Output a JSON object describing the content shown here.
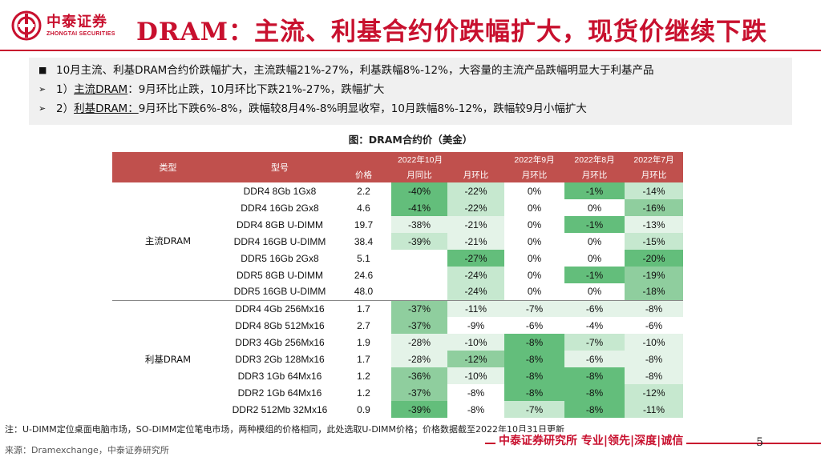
{
  "header": {
    "logo_cn": "中泰证券",
    "logo_en": "ZHONGTAI SECURITIES",
    "title": "DRAM：主流、利基合约价跌幅扩大，现货价继续下跌"
  },
  "summary": {
    "lines": [
      {
        "marker": "■",
        "pre": "",
        "underlined": "",
        "text": "10月主流、利基DRAM合约价跌幅扩大，主流跌幅21%-27%，利基跌幅8%-12%，大容量的主流产品跌幅明显大于利基产品"
      },
      {
        "marker": "➢",
        "pre": "1）",
        "underlined": "主流DRAM",
        "text": "：9月环比止跌，10月环比下跌21%-27%，跌幅扩大"
      },
      {
        "marker": "➢",
        "pre": "2）",
        "underlined": "利基DRAM：",
        "text": "9月环比下跌6%-8%，跌幅较8月4%-8%明显收窄，10月跌幅8%-12%，跌幅较9月小幅扩大"
      }
    ]
  },
  "table": {
    "title": "图：DRAM合约价（美金）",
    "headers": {
      "type": "类型",
      "model": "型号",
      "oct_group": "2022年10月",
      "sep": "2022年9月",
      "aug": "2022年8月",
      "jul": "2022年7月",
      "price": "价格",
      "yoy": "月同比",
      "mom": "月环比",
      "sep_mom": "月环比",
      "aug_mom": "月环比",
      "jul_mom": "月环比"
    },
    "groups": [
      {
        "type": "主流DRAM",
        "rows": [
          {
            "model": "DDR4 8Gb 1Gx8",
            "price": "2.2",
            "yoy": "-40%",
            "oct": "-22%",
            "sep": "0%",
            "aug": "-1%",
            "jul": "-14%"
          },
          {
            "model": "DDR4 16Gb 2Gx8",
            "price": "4.6",
            "yoy": "-41%",
            "oct": "-22%",
            "sep": "0%",
            "aug": "0%",
            "jul": "-16%"
          },
          {
            "model": "DDR4 8GB  U-DIMM",
            "price": "19.7",
            "yoy": "-38%",
            "oct": "-21%",
            "sep": "0%",
            "aug": "-1%",
            "jul": "-13%"
          },
          {
            "model": "DDR4 16GB  U-DIMM",
            "price": "38.4",
            "yoy": "-39%",
            "oct": "-21%",
            "sep": "0%",
            "aug": "0%",
            "jul": "-15%"
          },
          {
            "model": "DDR5 16Gb  2Gx8",
            "price": "5.1",
            "yoy": "",
            "oct": "-27%",
            "sep": "0%",
            "aug": "0%",
            "jul": "-20%"
          },
          {
            "model": "DDR5 8GB  U-DIMM",
            "price": "24.6",
            "yoy": "",
            "oct": "-24%",
            "sep": "0%",
            "aug": "-1%",
            "jul": "-19%"
          },
          {
            "model": "DDR5 16GB U-DIMM",
            "price": "48.0",
            "yoy": "",
            "oct": "-24%",
            "sep": "0%",
            "aug": "0%",
            "jul": "-18%"
          }
        ]
      },
      {
        "type": "利基DRAM",
        "rows": [
          {
            "model": "DDR4 4Gb 256Mx16",
            "price": "1.7",
            "yoy": "-37%",
            "oct": "-11%",
            "sep": "-7%",
            "aug": "-6%",
            "jul": "-8%"
          },
          {
            "model": "DDR4 8Gb 512Mx16",
            "price": "2.7",
            "yoy": "-37%",
            "oct": "-9%",
            "sep": "-6%",
            "aug": "-4%",
            "jul": "-6%"
          },
          {
            "model": "DDR3 4Gb 256Mx16",
            "price": "1.9",
            "yoy": "-28%",
            "oct": "-10%",
            "sep": "-8%",
            "aug": "-7%",
            "jul": "-10%"
          },
          {
            "model": "DDR3 2Gb 128Mx16",
            "price": "1.7",
            "yoy": "-28%",
            "oct": "-12%",
            "sep": "-8%",
            "aug": "-6%",
            "jul": "-8%"
          },
          {
            "model": "DDR3 1Gb 64Mx16",
            "price": "1.2",
            "yoy": "-36%",
            "oct": "-10%",
            "sep": "-8%",
            "aug": "-8%",
            "jul": "-8%"
          },
          {
            "model": "DDR2 1Gb 64Mx16",
            "price": "1.2",
            "yoy": "-37%",
            "oct": "-8%",
            "sep": "-8%",
            "aug": "-8%",
            "jul": "-12%"
          },
          {
            "model": "DDR2 512Mb 32Mx16",
            "price": "0.9",
            "yoy": "-39%",
            "oct": "-8%",
            "sep": "-7%",
            "aug": "-8%",
            "jul": "-11%"
          }
        ]
      }
    ]
  },
  "footer": {
    "note": "注：U-DIMM定位桌面电脑市场，SO-DIMM定位笔电市场，两种模组的价格相同，此处选取U-DIMM价格；价格数据截至2022年10月31日更新",
    "source": "来源：Dramexchange，中泰证券研究所",
    "slogan": "中泰证券研究所 专业|领先|深度|诚信",
    "page": "5"
  },
  "colors": {
    "brand_red": "#c8102e",
    "header_fill": "#c0504d",
    "green_dark": "#63be7b",
    "green_mid": "#8fce9e",
    "green_light": "#c6e8cf",
    "green_pale": "#e4f3e8"
  }
}
